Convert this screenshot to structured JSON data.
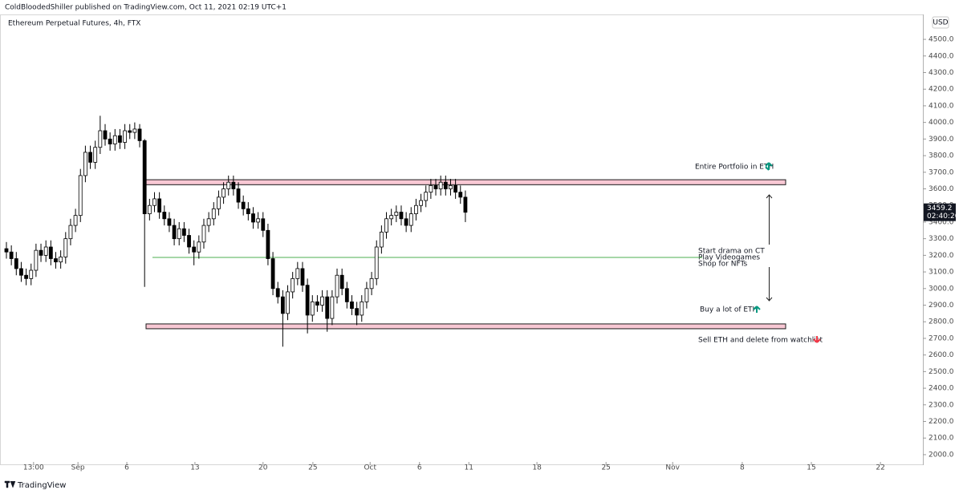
{
  "header": "ColdBloodedShiller published on TradingView.com, Oct 11, 2021 02:19 UTC+1",
  "footer": "TradingView",
  "chart_data": {
    "type": "candlestick",
    "title": "Ethereum Perpetual Futures, 4h, FTX",
    "currency": "USD",
    "countdown": "02:40:26",
    "up_color": "#ffffff",
    "down_color": "#000000",
    "wick_color": "#000000",
    "grid": false,
    "open": [
      3240,
      3220,
      3180,
      3120,
      3080,
      3060,
      3110,
      3230,
      3200,
      3250,
      3180,
      3160,
      3190,
      3300,
      3380,
      3440,
      3680,
      3820,
      3760,
      3850,
      3950,
      3900,
      3870,
      3920,
      3880,
      3950,
      3940,
      3960,
      3890,
      3450,
      3500,
      3540,
      3460,
      3420,
      3380,
      3300,
      3360,
      3320,
      3250,
      3220,
      3280,
      3380,
      3420,
      3480,
      3550,
      3600,
      3640,
      3600,
      3520,
      3480,
      3450,
      3400,
      3420,
      3350,
      3180,
      3000,
      2950,
      2850,
      2980,
      3060,
      3120,
      3020,
      2840,
      2920,
      2900,
      2950,
      2820,
      2950,
      3080,
      3000,
      2920,
      2880,
      2840,
      2920,
      3000,
      3060,
      3250,
      3340,
      3420,
      3440,
      3460,
      3420,
      3380,
      3450,
      3500,
      3530,
      3580,
      3620,
      3600,
      3640,
      3600,
      3620,
      3580,
      3550
    ],
    "high": [
      3280,
      3260,
      3220,
      3160,
      3120,
      3150,
      3270,
      3270,
      3290,
      3290,
      3220,
      3230,
      3340,
      3420,
      3480,
      3720,
      3860,
      3860,
      3890,
      4040,
      3990,
      3940,
      3960,
      3960,
      3990,
      3990,
      4000,
      3990,
      3900,
      3540,
      3580,
      3580,
      3500,
      3460,
      3420,
      3400,
      3400,
      3360,
      3290,
      3320,
      3420,
      3460,
      3520,
      3590,
      3640,
      3680,
      3680,
      3640,
      3560,
      3520,
      3490,
      3460,
      3460,
      3390,
      3220,
      3040,
      2990,
      3020,
      3100,
      3160,
      3160,
      3060,
      2960,
      2960,
      2990,
      2990,
      2990,
      3120,
      3120,
      3040,
      2960,
      2920,
      2960,
      3040,
      3100,
      3290,
      3380,
      3460,
      3480,
      3500,
      3500,
      3460,
      3490,
      3540,
      3570,
      3620,
      3660,
      3660,
      3680,
      3680,
      3660,
      3660,
      3620,
      3590
    ],
    "low": [
      3180,
      3140,
      3080,
      3040,
      3020,
      3020,
      3070,
      3160,
      3160,
      3140,
      3120,
      3120,
      3150,
      3260,
      3340,
      3400,
      3640,
      3720,
      3720,
      3810,
      3860,
      3830,
      3830,
      3840,
      3840,
      3900,
      3900,
      3850,
      3010,
      3410,
      3460,
      3420,
      3380,
      3340,
      3260,
      3260,
      3280,
      3210,
      3140,
      3180,
      3240,
      3340,
      3380,
      3440,
      3510,
      3560,
      3560,
      3480,
      3440,
      3410,
      3360,
      3360,
      3310,
      3140,
      2960,
      2910,
      2650,
      2810,
      2940,
      3020,
      2980,
      2730,
      2800,
      2860,
      2860,
      2740,
      2780,
      2910,
      2960,
      2880,
      2840,
      2780,
      2800,
      2880,
      2960,
      3020,
      3210,
      3300,
      3380,
      3400,
      3380,
      3340,
      3340,
      3410,
      3460,
      3490,
      3540,
      3560,
      3560,
      3560,
      3560,
      3540,
      3510,
      3400
    ],
    "close": [
      3220,
      3180,
      3120,
      3080,
      3060,
      3110,
      3230,
      3200,
      3250,
      3180,
      3160,
      3190,
      3300,
      3380,
      3440,
      3680,
      3820,
      3760,
      3850,
      3950,
      3900,
      3870,
      3920,
      3880,
      3950,
      3940,
      3960,
      3890,
      3450,
      3500,
      3540,
      3460,
      3420,
      3380,
      3300,
      3360,
      3320,
      3250,
      3220,
      3280,
      3380,
      3420,
      3480,
      3550,
      3600,
      3640,
      3600,
      3520,
      3480,
      3450,
      3400,
      3420,
      3350,
      3180,
      3000,
      2950,
      2850,
      2980,
      3060,
      3120,
      3020,
      2840,
      2920,
      2900,
      2950,
      2820,
      2950,
      3080,
      3000,
      2920,
      2880,
      2840,
      2920,
      3000,
      3060,
      3250,
      3340,
      3420,
      3440,
      3460,
      3420,
      3380,
      3450,
      3500,
      3530,
      3580,
      3620,
      3600,
      3640,
      3600,
      3620,
      3580,
      3550,
      3459.2
    ],
    "xlim": [
      -1.3,
      185.7
    ],
    "xticks": [
      {
        "value": 5.5,
        "label": "13:00"
      },
      {
        "value": 14.5,
        "label": "Sep"
      },
      {
        "value": 24.4,
        "label": "6"
      },
      {
        "value": 38.2,
        "label": "13"
      },
      {
        "value": 52,
        "label": "20"
      },
      {
        "value": 62.1,
        "label": "25"
      },
      {
        "value": 73.7,
        "label": "Oct"
      },
      {
        "value": 83.7,
        "label": "6"
      },
      {
        "value": 93.7,
        "label": "11"
      },
      {
        "value": 107.5,
        "label": "18"
      },
      {
        "value": 121.5,
        "label": "25"
      },
      {
        "value": 135,
        "label": "Nov"
      },
      {
        "value": 149.1,
        "label": "8"
      },
      {
        "value": 163.1,
        "label": "15"
      },
      {
        "value": 177.1,
        "label": "22"
      }
    ],
    "ylim": [
      1937,
      4650
    ],
    "yticks": [
      {
        "value": 2000,
        "label": "2000.0"
      },
      {
        "value": 2100,
        "label": "2100.0"
      },
      {
        "value": 2200,
        "label": "2200.0"
      },
      {
        "value": 2300,
        "label": "2300.0"
      },
      {
        "value": 2400,
        "label": "2400.0"
      },
      {
        "value": 2500,
        "label": "2500.0"
      },
      {
        "value": 2600,
        "label": "2600.0"
      },
      {
        "value": 2700,
        "label": "2700.0"
      },
      {
        "value": 2800,
        "label": "2800.0"
      },
      {
        "value": 2900,
        "label": "2900.0"
      },
      {
        "value": 3000,
        "label": "3000.0"
      },
      {
        "value": 3100,
        "label": "3100.0"
      },
      {
        "value": 3200,
        "label": "3200.0"
      },
      {
        "value": 3300,
        "label": "3300.0"
      },
      {
        "value": 3400,
        "label": "3400.0"
      },
      {
        "value": 3500,
        "label": "3500.0"
      },
      {
        "value": 3600,
        "label": "3600.0"
      },
      {
        "value": 3700,
        "label": "3700.0"
      },
      {
        "value": 3800,
        "label": "3800.0"
      },
      {
        "value": 3900,
        "label": "3900.0"
      },
      {
        "value": 4000,
        "label": "4000.0"
      },
      {
        "value": 4100,
        "label": "4100.0"
      },
      {
        "value": 4200,
        "label": "4200.0"
      },
      {
        "value": 4300,
        "label": "4300.0"
      },
      {
        "value": 4400,
        "label": "4400.0"
      },
      {
        "value": 4500,
        "label": "4500.0"
      }
    ],
    "zones": [
      {
        "from": 3625,
        "to": 3655,
        "color": "#f8c8d4"
      },
      {
        "from": 2758,
        "to": 2787,
        "color": "#f8c8d4"
      }
    ],
    "level": {
      "value": 3187,
      "color": "#4caf50"
    },
    "annotations": [
      "Entire Portfolio in ETH",
      "Start drama on CT",
      "Play Videogames",
      "Shop for NFTs",
      "Buy a lot of ETH",
      "Sell ETH and delete from watchlist"
    ]
  }
}
